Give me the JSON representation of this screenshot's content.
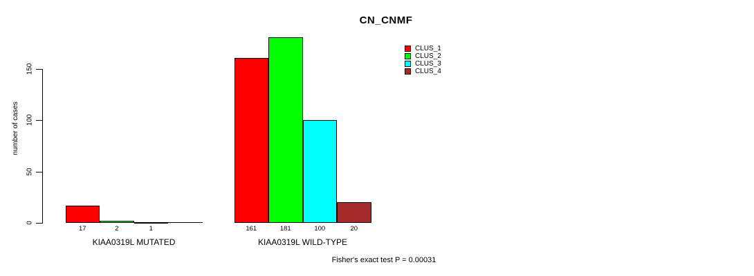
{
  "title": "CN_CNMF",
  "y_axis": {
    "label": "number of cases",
    "tick_labels": [
      "0",
      "50",
      "100",
      "150"
    ],
    "ticks": [
      0,
      50,
      100,
      150
    ]
  },
  "legend": {
    "entries": [
      {
        "label": "CLUS_1",
        "color": "#ff0000"
      },
      {
        "label": "CLUS_2",
        "color": "#00ff00"
      },
      {
        "label": "CLUS_3",
        "color": "#00ffff"
      },
      {
        "label": "CLUS_4",
        "color": "#a52a2a"
      }
    ]
  },
  "footer": {
    "fisher_text": "Fisher's exact test P = 0.00031"
  },
  "chart_data": {
    "type": "bar",
    "title": "CN_CNMF",
    "xlabel": "",
    "ylabel": "number of cases",
    "ylim": [
      0,
      181
    ],
    "yticks": [
      0,
      50,
      100,
      150
    ],
    "grid": false,
    "legend_position": "top-right",
    "bar_border_color": "#000000",
    "categories": [
      "KIAA0319L MUTATED",
      "KIAA0319L WILD-TYPE"
    ],
    "series": [
      {
        "name": "CLUS_1",
        "color": "#ff0000",
        "values": [
          17,
          161
        ]
      },
      {
        "name": "CLUS_2",
        "color": "#00ff00",
        "values": [
          2,
          181
        ]
      },
      {
        "name": "CLUS_3",
        "color": "#00ffff",
        "values": [
          1,
          100
        ]
      },
      {
        "name": "CLUS_4",
        "color": "#a52a2a",
        "values": [
          0,
          20
        ]
      }
    ],
    "bar_value_labels": [
      [
        "17",
        "2",
        "1",
        ""
      ],
      [
        "161",
        "181",
        "100",
        "20"
      ]
    ],
    "annotation": "Fisher's exact test P = 0.00031"
  }
}
